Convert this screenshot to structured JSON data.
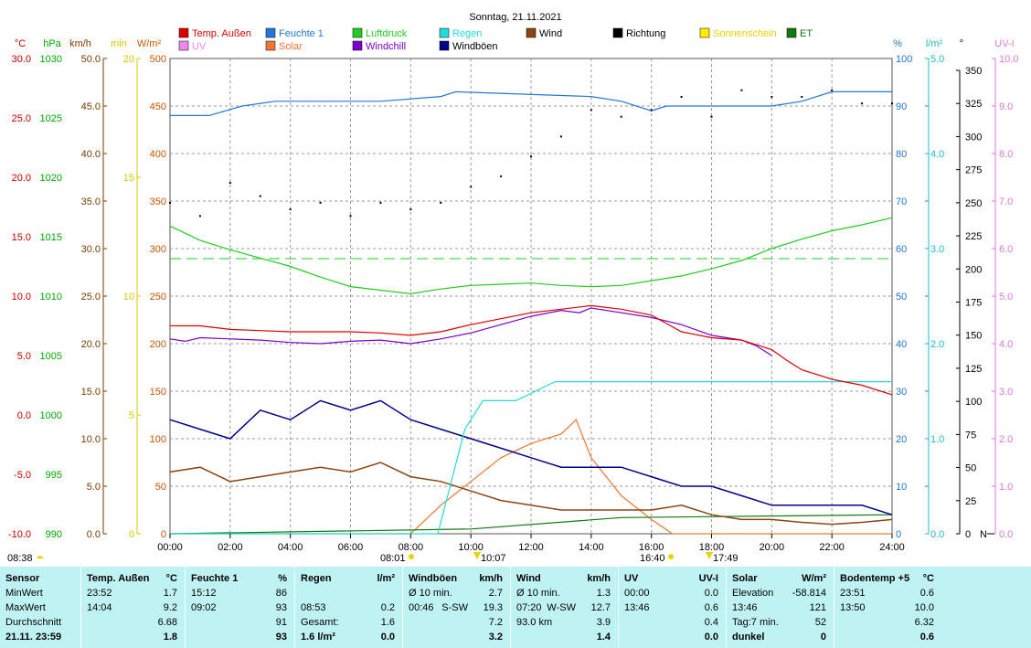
{
  "title": "Sonntag, 21.11.2021",
  "axes": {
    "temp": {
      "unit": "°C",
      "color": "#cc0000",
      "ticks": [
        "30.0",
        "25.0",
        "20.0",
        "15.0",
        "10.0",
        "5.0",
        "0.0",
        "-5.0",
        "-10.0"
      ]
    },
    "hpa": {
      "unit": "hPa",
      "color": "#00aa00",
      "ticks": [
        "1030",
        "1025",
        "1020",
        "1015",
        "1010",
        "1005",
        "1000",
        "995",
        "990"
      ]
    },
    "kmh": {
      "unit": "km/h",
      "color": "#7a3d00",
      "ticks": [
        "50.0",
        "45.0",
        "40.0",
        "35.0",
        "30.0",
        "25.0",
        "20.0",
        "15.0",
        "10.0",
        "5.0",
        "0.0"
      ]
    },
    "min": {
      "unit": "min",
      "color": "#d8c800",
      "ticks": [
        "20",
        "15",
        "10",
        "5",
        "0"
      ]
    },
    "wm2": {
      "unit": "W/m²",
      "color": "#cc5500",
      "ticks": [
        "500",
        "450",
        "400",
        "350",
        "300",
        "250",
        "200",
        "150",
        "100",
        "50",
        "0"
      ]
    },
    "pct": {
      "unit": "%",
      "color": "#2277cc",
      "ticks": [
        "100",
        "90",
        "80",
        "70",
        "60",
        "50",
        "40",
        "30",
        "20",
        "10",
        "0"
      ]
    },
    "lm2": {
      "unit": "l/m²",
      "color": "#22bbcc",
      "ticks": [
        "5.0",
        "4.0",
        "3.0",
        "2.0",
        "1.0",
        "0.0"
      ]
    },
    "deg": {
      "unit": "°",
      "color": "#000000",
      "ticks": [
        "350",
        "325",
        "300",
        "275",
        "250",
        "225",
        "200",
        "175",
        "150",
        "125",
        "100",
        "75",
        "50",
        "25",
        "0"
      ],
      "zero_suffix": "N"
    },
    "uv": {
      "unit": "UV-I",
      "color": "#dd77dd",
      "ticks": [
        "10.0",
        "9.0",
        "8.0",
        "7.0",
        "6.0",
        "5.0",
        "4.0",
        "3.0",
        "2.0",
        "1.0",
        "0.0"
      ]
    }
  },
  "legend": [
    {
      "label": "Temp. Außen",
      "color": "#dd0000"
    },
    {
      "label": "Feuchte 1",
      "color": "#2277dd"
    },
    {
      "label": "Luftdruck",
      "color": "#22cc22"
    },
    {
      "label": "Regen",
      "color": "#22dddd"
    },
    {
      "label": "Wind",
      "color": "#8b4513"
    },
    {
      "label": "Richtung",
      "color": "#000000"
    },
    {
      "label": "Sonnenschein",
      "color": "#ffee00"
    },
    {
      "label": "ET",
      "color": "#117711"
    },
    {
      "label": "UV",
      "color": "#ee88ee"
    },
    {
      "label": "Solar",
      "color": "#ee7733"
    },
    {
      "label": "Windchill",
      "color": "#7a00cc"
    },
    {
      "label": "Windböen",
      "color": "#000088"
    }
  ],
  "x_ticks": [
    "00:00",
    "02:00",
    "04:00",
    "06:00",
    "08:00",
    "10:00",
    "12:00",
    "14:00",
    "16:00",
    "18:00",
    "20:00",
    "22:00",
    "24:00"
  ],
  "time_marks": [
    {
      "text": "08:38",
      "kind": "moon"
    },
    {
      "text": "08:01",
      "kind": "sunrise"
    },
    {
      "text": "10:07",
      "kind": "arrow"
    },
    {
      "text": "16:40",
      "kind": "sunset"
    },
    {
      "text": "17:49",
      "kind": "arrow"
    }
  ],
  "chart_data": {
    "type": "line",
    "x_unit": "hour",
    "xlim": [
      0,
      24
    ],
    "series": [
      {
        "name": "Temp. Außen",
        "axis": "°C",
        "color": "#dd0000",
        "x": [
          0,
          1,
          2,
          3,
          4,
          5,
          6,
          7,
          8,
          9,
          10,
          11,
          12,
          13,
          14,
          15,
          16,
          16.5,
          17,
          18,
          19,
          20,
          20.5,
          21,
          22,
          23,
          24
        ],
        "y": [
          7.5,
          7.5,
          7.2,
          7.1,
          7.0,
          7.0,
          7.0,
          6.9,
          6.7,
          7.0,
          7.6,
          8.1,
          8.6,
          8.9,
          9.2,
          8.9,
          8.4,
          7.7,
          7.0,
          6.5,
          6.3,
          5.5,
          4.6,
          3.8,
          3.0,
          2.5,
          1.7
        ]
      },
      {
        "name": "Windchill",
        "axis": "°C",
        "color": "#7a00cc",
        "x": [
          0,
          0.5,
          1,
          2,
          3,
          4,
          5,
          6,
          7,
          8,
          9,
          10,
          11,
          12,
          13,
          13.6,
          14,
          15,
          16,
          17,
          18,
          19,
          19.5,
          20
        ],
        "y": [
          6.4,
          6.2,
          6.5,
          6.4,
          6.3,
          6.1,
          6.0,
          6.2,
          6.3,
          6.0,
          6.4,
          6.9,
          7.6,
          8.3,
          8.8,
          8.6,
          9.0,
          8.6,
          8.2,
          7.6,
          6.7,
          6.3,
          5.8,
          5.0
        ]
      },
      {
        "name": "Feuchte 1",
        "axis": "%",
        "color": "#2277dd",
        "x": [
          0,
          1.3,
          2.4,
          3.5,
          5,
          7,
          9,
          9.5,
          14,
          15,
          16,
          16.5,
          17,
          18,
          19,
          20,
          21,
          22,
          24
        ],
        "y": [
          88,
          88,
          90,
          91,
          91,
          91,
          92,
          93,
          92,
          91,
          89,
          90,
          90,
          90,
          90,
          90,
          91,
          93,
          93
        ]
      },
      {
        "name": "Luftdruck",
        "axis": "hPa",
        "color": "#22cc22",
        "x": [
          0,
          1,
          2,
          3,
          4,
          5,
          6,
          7,
          8,
          9,
          10,
          11,
          12,
          13,
          14,
          15,
          16,
          17,
          18,
          19,
          20,
          21,
          22,
          23,
          24
        ],
        "y": [
          1015.9,
          1014.7,
          1013.9,
          1013.2,
          1012.5,
          1011.6,
          1010.8,
          1010.5,
          1010.2,
          1010.6,
          1010.9,
          1011.0,
          1011.1,
          1010.9,
          1010.8,
          1010.9,
          1011.3,
          1011.7,
          1012.3,
          1013.0,
          1014.0,
          1014.8,
          1015.5,
          1016.0,
          1016.6
        ]
      },
      {
        "name": "Regen",
        "axis": "l/m²",
        "color": "#22dddd",
        "x": [
          0,
          8.9,
          9.8,
          10.4,
          11.5,
          12.8,
          14,
          24
        ],
        "y": [
          0,
          0,
          1.1,
          1.4,
          1.4,
          1.6,
          1.6,
          1.6
        ]
      },
      {
        "name": "Wind",
        "axis": "km/h",
        "color": "#8b4513",
        "x": [
          0,
          1,
          2,
          3,
          4,
          5,
          6,
          7,
          8,
          9,
          10,
          11,
          12,
          13,
          14,
          15,
          16,
          17,
          18,
          19,
          20,
          21,
          22,
          23,
          24
        ],
        "y": [
          6.5,
          7.0,
          5.5,
          6.0,
          6.5,
          7.0,
          6.5,
          7.5,
          6.0,
          5.5,
          4.5,
          3.5,
          3.0,
          2.5,
          2.5,
          2.5,
          2.5,
          3.0,
          2.0,
          1.5,
          1.5,
          1.2,
          1.0,
          1.2,
          1.5
        ]
      },
      {
        "name": "Windböen",
        "axis": "km/h",
        "color": "#000088",
        "x": [
          0,
          1,
          2,
          3,
          4,
          5,
          6,
          7,
          8,
          9,
          10,
          11,
          12,
          13,
          14,
          15,
          16,
          17,
          18,
          19,
          20,
          21,
          22,
          23,
          24
        ],
        "y": [
          12,
          11,
          10,
          13,
          12,
          14,
          13,
          14,
          12,
          11,
          10,
          9,
          8,
          7,
          7,
          7,
          6,
          5,
          5,
          4,
          3,
          3,
          3,
          3,
          2
        ]
      },
      {
        "name": "Solar",
        "axis": "W/m²",
        "color": "#ee7733",
        "x": [
          0,
          8.0,
          9,
          10,
          11,
          12,
          13,
          13.5,
          14,
          15,
          16,
          16.7,
          24
        ],
        "y": [
          0,
          0,
          30,
          55,
          80,
          95,
          105,
          120,
          80,
          40,
          15,
          0,
          0
        ]
      },
      {
        "name": "ET",
        "axis": "W/m²",
        "color": "#117711",
        "x": [
          0,
          10,
          15,
          24
        ],
        "y": [
          0,
          5,
          17,
          20
        ]
      },
      {
        "name": "Richtung",
        "axis": "°",
        "color": "#000000",
        "style": "scatter",
        "x": [
          0,
          1,
          2,
          3,
          4,
          5,
          6,
          7,
          8,
          9,
          10,
          11,
          12,
          13,
          14,
          15,
          16,
          17,
          18,
          19,
          20,
          21,
          22,
          23,
          24
        ],
        "y": [
          250,
          240,
          265,
          255,
          245,
          250,
          240,
          250,
          245,
          250,
          262,
          270,
          285,
          300,
          320,
          315,
          320,
          330,
          315,
          335,
          330,
          330,
          335,
          325,
          325
        ]
      }
    ]
  },
  "stats": {
    "headers": {
      "sensor": "Sensor",
      "temp": "Temp. Außen",
      "temp_u": "°C",
      "hum": "Feuchte 1",
      "hum_u": "%",
      "rain": "Regen",
      "rain_u": "l/m²",
      "gust": "Windböen",
      "gust_u": "km/h",
      "wind": "Wind",
      "wind_u": "km/h",
      "uv": "UV",
      "uv_u": "UV-I",
      "solar": "Solar",
      "solar_u": "W/m²",
      "soil": "Bodentemp +5",
      "soil_u": "°C"
    },
    "labels": [
      "MinWert",
      "MaxWert",
      "Durchschnitt",
      "21.11. 23:59"
    ],
    "temp": [
      [
        "23:52",
        "1.7"
      ],
      [
        "14:04",
        "9.2"
      ],
      [
        "",
        "6.68"
      ],
      [
        "",
        "1.8"
      ]
    ],
    "hum": [
      [
        "15:12",
        "86"
      ],
      [
        "09:02",
        "93"
      ],
      [
        "",
        "91"
      ],
      [
        "",
        "93"
      ]
    ],
    "rain": [
      [
        "",
        ""
      ],
      [
        "08:53",
        "0.2"
      ],
      [
        "Gesamt:",
        "1.6"
      ],
      [
        "1.6 l/m²",
        "0.0"
      ]
    ],
    "gust": [
      [
        "Ø 10 min.",
        "",
        "2.7"
      ],
      [
        "00:46",
        "S-SW",
        "19.3"
      ],
      [
        "",
        "",
        "7.2"
      ],
      [
        "",
        "",
        "3.2"
      ]
    ],
    "wind": [
      [
        "Ø 10 min.",
        "",
        "1.3"
      ],
      [
        "07:20",
        "W-SW",
        "12.7"
      ],
      [
        "93.0 km",
        "",
        "3.9"
      ],
      [
        "",
        "",
        "1.4"
      ]
    ],
    "uv": [
      [
        "00:00",
        "0.0"
      ],
      [
        "13:46",
        "0.6"
      ],
      [
        "",
        "0.4"
      ],
      [
        "",
        "0.0"
      ]
    ],
    "solar": [
      [
        "Elevation",
        "-58.814"
      ],
      [
        "13:46",
        "121"
      ],
      [
        "Tag:7 min.",
        "52"
      ],
      [
        "dunkel",
        "0"
      ]
    ],
    "soil": [
      [
        "23:51",
        "0.6"
      ],
      [
        "13:50",
        "10.0"
      ],
      [
        "",
        "6.32"
      ],
      [
        "",
        "0.6"
      ]
    ]
  }
}
